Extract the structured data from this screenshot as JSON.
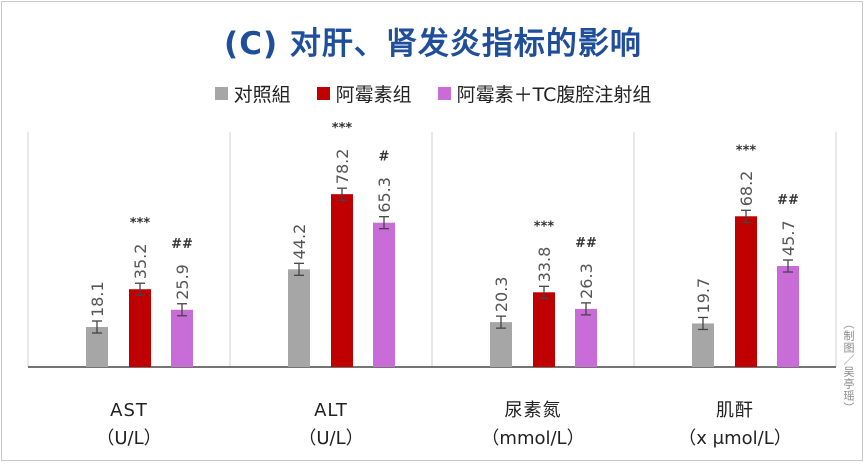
{
  "title": "(C) 对肝、肾发炎指标的影响",
  "credit": "（制图／吴亭瑶）",
  "colors": {
    "control": "#a6a6a6",
    "model": "#c00000",
    "treatment": "#c86dd7",
    "divider": "#d0d0d0",
    "axis": "#222222"
  },
  "chart_data": {
    "type": "bar",
    "title": "(C) 对肝、肾发炎指标的影响",
    "legend_position": "top",
    "categories": [
      {
        "name": "AST",
        "unit": "（U/L）"
      },
      {
        "name": "ALT",
        "unit": "（U/L）"
      },
      {
        "name": "尿素氮",
        "unit": "（mmol/L）"
      },
      {
        "name": "肌酐",
        "unit": "（x μmol/L）"
      }
    ],
    "series": [
      {
        "name": "对照組",
        "color": "#a6a6a6",
        "values": [
          18.1,
          44.2,
          20.3,
          19.7
        ],
        "labels": [
          "18.1",
          "44.2",
          "20.3",
          "19.7"
        ],
        "significance": [
          "",
          "",
          "",
          ""
        ]
      },
      {
        "name": "阿霉素组",
        "color": "#c00000",
        "values": [
          35.2,
          78.2,
          33.8,
          68.2
        ],
        "labels": [
          "35.2",
          "78.2",
          "33.8",
          "68.2"
        ],
        "significance": [
          "***",
          "***",
          "***",
          "***"
        ]
      },
      {
        "name": "阿霉素＋TC腹腔注射组",
        "color": "#c86dd7",
        "values": [
          25.9,
          65.3,
          26.3,
          45.7
        ],
        "labels": [
          "25.9",
          "65.3",
          "26.3",
          "45.7"
        ],
        "significance": [
          "##",
          "#",
          "##",
          "##"
        ]
      }
    ]
  }
}
